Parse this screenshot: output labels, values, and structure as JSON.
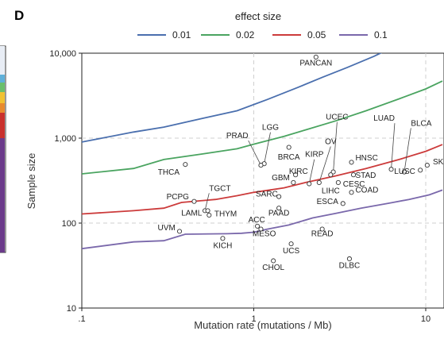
{
  "panel_letter": "D",
  "chart_data": {
    "type": "scatter",
    "title": "",
    "xlabel": "Mutation rate (mutations / Mb)",
    "ylabel": "Sample size",
    "x_scale": "log",
    "y_scale": "log",
    "xlim": [
      0.1,
      12.5
    ],
    "ylim": [
      10,
      10000
    ],
    "x_ticks": [
      {
        "value": 0.1,
        "label": ".1"
      },
      {
        "value": 1,
        "label": "1"
      },
      {
        "value": 10,
        "label": "10"
      }
    ],
    "y_ticks": [
      {
        "value": 10,
        "label": "10"
      },
      {
        "value": 100,
        "label": "100"
      },
      {
        "value": 1000,
        "label": "1,000"
      },
      {
        "value": 10000,
        "label": "10,000"
      }
    ],
    "grid": "dashed at major ticks",
    "legend": {
      "title": "effect size",
      "placement": "top"
    },
    "lines": [
      {
        "name": "0.01",
        "color": "#4a6fae",
        "points": [
          [
            0.1,
            900
          ],
          [
            0.2,
            1180
          ],
          [
            0.3,
            1350
          ],
          [
            0.5,
            1700
          ],
          [
            0.8,
            2100
          ],
          [
            1.2,
            2850
          ],
          [
            1.8,
            3950
          ],
          [
            2.5,
            5200
          ],
          [
            3.5,
            6800
          ],
          [
            5.0,
            9200
          ],
          [
            6.3,
            11500
          ]
        ]
      },
      {
        "name": "0.02",
        "color": "#4aa460",
        "points": [
          [
            0.1,
            380
          ],
          [
            0.2,
            440
          ],
          [
            0.3,
            560
          ],
          [
            0.5,
            650
          ],
          [
            0.8,
            750
          ],
          [
            1.0,
            850
          ],
          [
            1.5,
            1050
          ],
          [
            2.0,
            1250
          ],
          [
            3.0,
            1600
          ],
          [
            4.5,
            2100
          ],
          [
            7.0,
            2900
          ],
          [
            10.0,
            3800
          ],
          [
            12.5,
            4700
          ]
        ]
      },
      {
        "name": "0.05",
        "color": "#cc3b3b",
        "points": [
          [
            0.1,
            128
          ],
          [
            0.2,
            140
          ],
          [
            0.3,
            150
          ],
          [
            0.38,
            175
          ],
          [
            0.6,
            190
          ],
          [
            0.8,
            210
          ],
          [
            1.0,
            230
          ],
          [
            1.5,
            260
          ],
          [
            2.0,
            300
          ],
          [
            3.0,
            360
          ],
          [
            4.5,
            440
          ],
          [
            7.0,
            560
          ],
          [
            10.0,
            700
          ],
          [
            12.5,
            840
          ]
        ]
      },
      {
        "name": "0.1",
        "color": "#7a68ab",
        "points": [
          [
            0.1,
            50
          ],
          [
            0.2,
            60
          ],
          [
            0.3,
            62
          ],
          [
            0.4,
            74
          ],
          [
            0.7,
            75
          ],
          [
            0.85,
            76
          ],
          [
            1.0,
            78
          ],
          [
            1.2,
            85
          ],
          [
            1.6,
            95
          ],
          [
            2.2,
            115
          ],
          [
            3.0,
            130
          ],
          [
            4.2,
            150
          ],
          [
            6.0,
            170
          ],
          [
            8.0,
            190
          ],
          [
            10.5,
            215
          ],
          [
            12.5,
            245
          ]
        ]
      }
    ],
    "points": [
      {
        "label": "PANCAN",
        "x": 2.3,
        "y": 9000,
        "lx": 2.3,
        "ly": 7200,
        "anchor": "middle"
      },
      {
        "label": "UCEC",
        "x": 2.9,
        "y": 400,
        "lx": 3.05,
        "ly": 1650,
        "anchor": "middle",
        "leader": true
      },
      {
        "label": "LGG",
        "x": 1.15,
        "y": 500,
        "lx": 1.25,
        "ly": 1250,
        "anchor": "middle",
        "leader": true
      },
      {
        "label": "PRAD",
        "x": 1.1,
        "y": 480,
        "lx": 0.93,
        "ly": 1000,
        "anchor": "end",
        "leader": true
      },
      {
        "label": "OV",
        "x": 2.4,
        "y": 300,
        "lx": 2.8,
        "ly": 850,
        "anchor": "middle",
        "leader": true
      },
      {
        "label": "LUAD",
        "x": 6.3,
        "y": 430,
        "lx": 6.6,
        "ly": 1600,
        "anchor": "end",
        "leader": true
      },
      {
        "label": "BLCA",
        "x": 7.5,
        "y": 400,
        "lx": 8.2,
        "ly": 1400,
        "anchor": "start",
        "leader": true
      },
      {
        "label": "BRCA",
        "x": 1.6,
        "y": 780,
        "lx": 1.6,
        "ly": 560,
        "anchor": "middle"
      },
      {
        "label": "THCA",
        "x": 0.4,
        "y": 490,
        "lx": 0.37,
        "ly": 370,
        "anchor": "end"
      },
      {
        "label": "KIRP",
        "x": 2.1,
        "y": 290,
        "lx": 2.25,
        "ly": 600,
        "anchor": "middle",
        "leader": true
      },
      {
        "label": "HNSC",
        "x": 3.7,
        "y": 520,
        "lx": 3.9,
        "ly": 550,
        "anchor": "start"
      },
      {
        "label": "KIRC",
        "x": 1.75,
        "y": 370,
        "lx": 1.82,
        "ly": 380,
        "anchor": "middle"
      },
      {
        "label": "GBM",
        "x": 1.7,
        "y": 300,
        "lx": 1.62,
        "ly": 320,
        "anchor": "end"
      },
      {
        "label": "STAD",
        "x": 3.8,
        "y": 370,
        "lx": 3.9,
        "ly": 340,
        "anchor": "start"
      },
      {
        "label": "LUSC",
        "x": 9.3,
        "y": 420,
        "lx": 8.7,
        "ly": 380,
        "anchor": "end"
      },
      {
        "label": "SKCM",
        "x": 10.2,
        "y": 480,
        "lx": 11.0,
        "ly": 490,
        "anchor": "start"
      },
      {
        "label": "LIHC",
        "x": 2.8,
        "y": 370,
        "lx": 2.8,
        "ly": 225,
        "anchor": "middle"
      },
      {
        "label": "CESC",
        "x": 3.1,
        "y": 300,
        "lx": 3.3,
        "ly": 270,
        "anchor": "start"
      },
      {
        "label": "COAD",
        "x": 3.7,
        "y": 230,
        "lx": 3.9,
        "ly": 230,
        "anchor": "start"
      },
      {
        "label": "SARC",
        "x": 1.4,
        "y": 205,
        "lx": 1.38,
        "ly": 205,
        "anchor": "end"
      },
      {
        "label": "TGCT",
        "x": 0.52,
        "y": 140,
        "lx": 0.55,
        "ly": 240,
        "anchor": "start",
        "leader": true
      },
      {
        "label": "PCPG",
        "x": 0.45,
        "y": 180,
        "lx": 0.42,
        "ly": 190,
        "anchor": "end"
      },
      {
        "label": "ESCA",
        "x": 3.3,
        "y": 170,
        "lx": 3.1,
        "ly": 168,
        "anchor": "end"
      },
      {
        "label": "PAAD",
        "x": 1.4,
        "y": 150,
        "lx": 1.4,
        "ly": 123,
        "anchor": "middle"
      },
      {
        "label": "LAML",
        "x": 0.54,
        "y": 140,
        "lx": 0.5,
        "ly": 123,
        "anchor": "end"
      },
      {
        "label": "THYM",
        "x": 0.55,
        "y": 124,
        "lx": 0.59,
        "ly": 120,
        "anchor": "start"
      },
      {
        "label": "ACC",
        "x": 1.05,
        "y": 92,
        "lx": 1.04,
        "ly": 102,
        "anchor": "middle"
      },
      {
        "label": "READ",
        "x": 2.5,
        "y": 85,
        "lx": 2.5,
        "ly": 70,
        "anchor": "middle"
      },
      {
        "label": "UVM",
        "x": 0.37,
        "y": 80,
        "lx": 0.35,
        "ly": 82,
        "anchor": "end"
      },
      {
        "label": "MESO",
        "x": 1.1,
        "y": 85,
        "lx": 1.15,
        "ly": 70,
        "anchor": "middle"
      },
      {
        "label": "KICH",
        "x": 0.66,
        "y": 66,
        "lx": 0.66,
        "ly": 51,
        "anchor": "middle"
      },
      {
        "label": "UCS",
        "x": 1.65,
        "y": 57,
        "lx": 1.65,
        "ly": 44,
        "anchor": "middle"
      },
      {
        "label": "CHOL",
        "x": 1.3,
        "y": 36,
        "lx": 1.3,
        "ly": 28,
        "anchor": "middle"
      },
      {
        "label": "DLBC",
        "x": 3.6,
        "y": 38,
        "lx": 3.6,
        "ly": 29.5,
        "anchor": "middle"
      }
    ]
  }
}
